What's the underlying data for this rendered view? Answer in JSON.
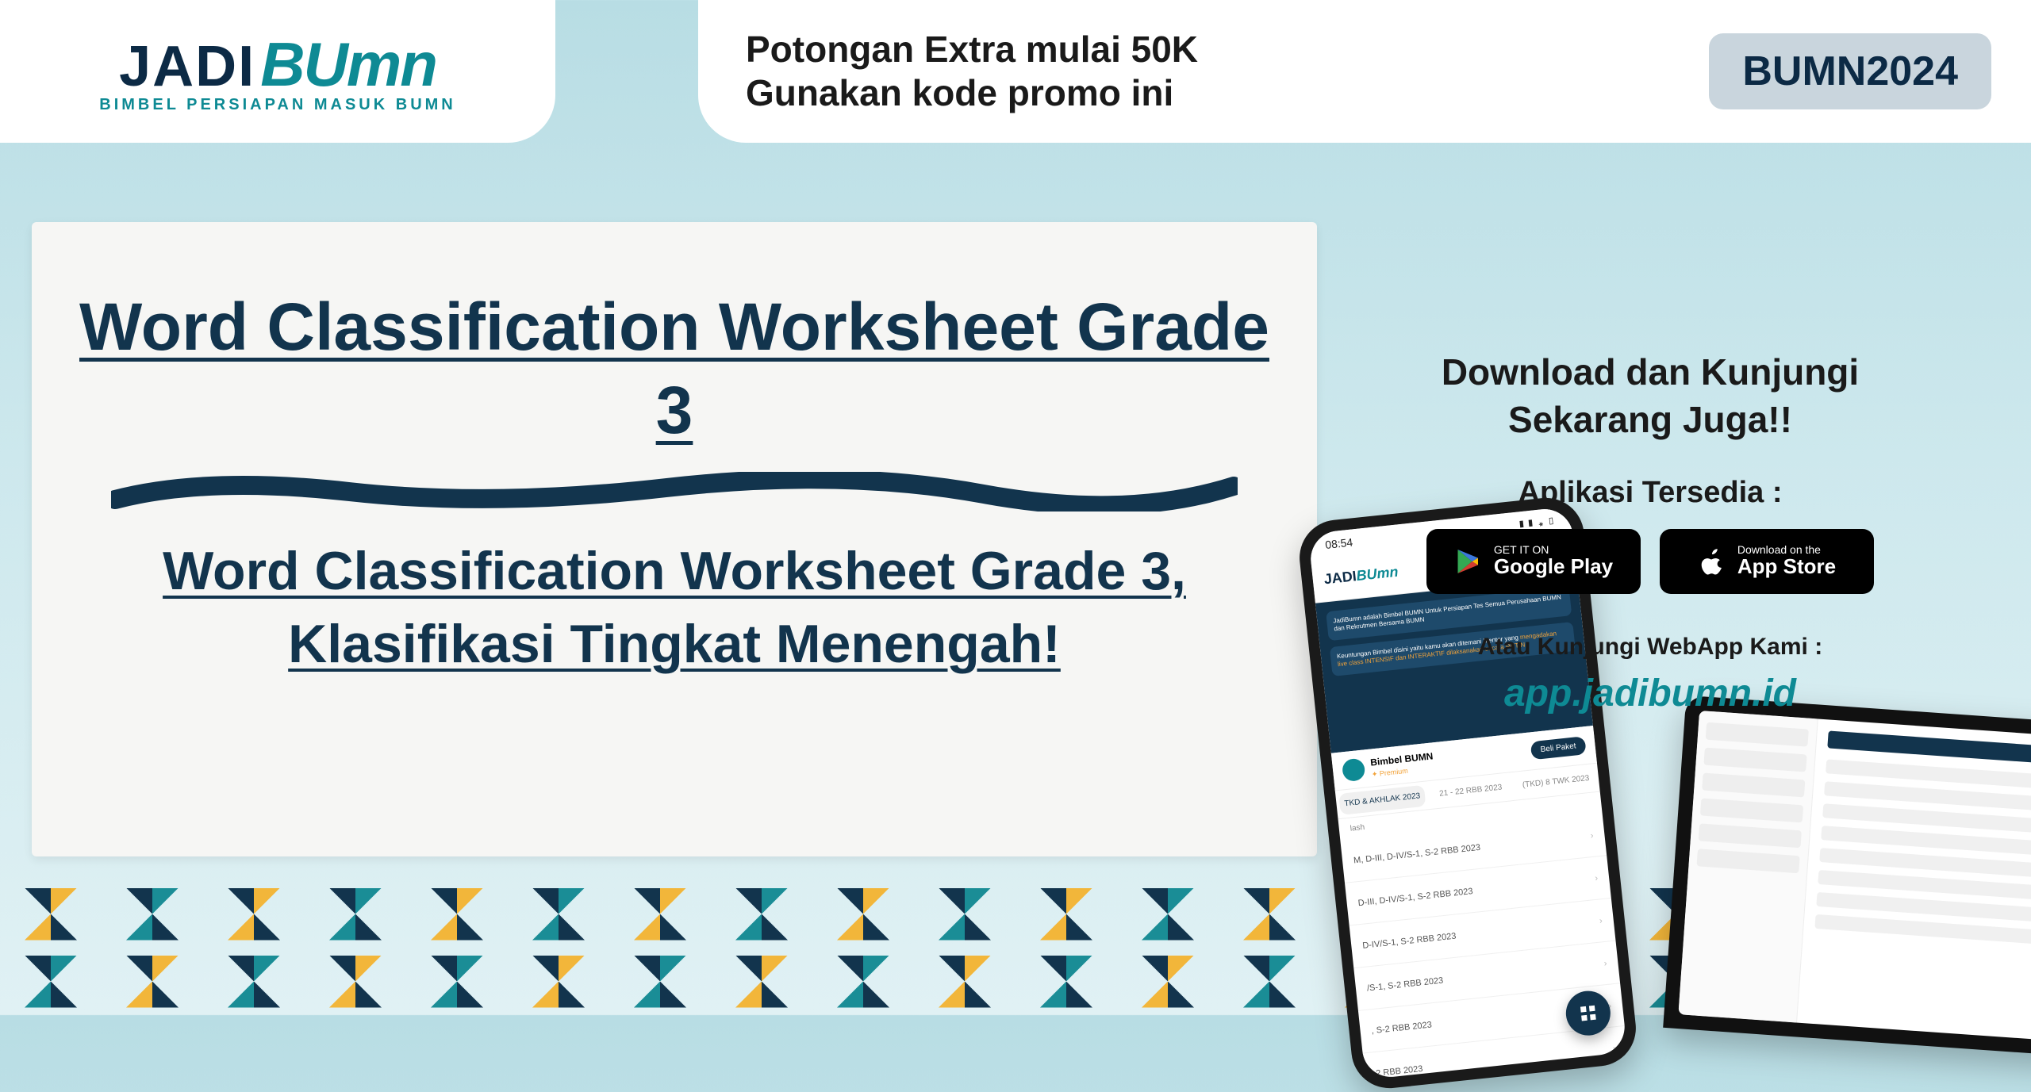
{
  "logo": {
    "word1": "JADI",
    "word2": "BUmn",
    "tagline": "BIMBEL PERSIAPAN MASUK BUMN"
  },
  "promo": {
    "line1": "Potongan Extra mulai 50K",
    "line2": "Gunakan kode promo ini",
    "code": "BUMN2024"
  },
  "main": {
    "title": "Word Classification Worksheet Grade 3",
    "subtitle": "Word Classification Worksheet Grade 3, Klasifikasi Tingkat Menengah!"
  },
  "download": {
    "heading_line1": "Download dan Kunjungi",
    "heading_line2": "Sekarang Juga!!",
    "available": "Aplikasi Tersedia :",
    "google_small": "GET IT ON",
    "google_big": "Google Play",
    "apple_small": "Download on the",
    "apple_big": "App Store",
    "webapp_label": "Atau Kunjungi WebApp Kami :",
    "webapp_url": "app.jadibumn.id"
  },
  "phone": {
    "time": "08:54",
    "hero1": "JadiBumn adalah Bimbel BUMN Untuk Persiapan Tes Semua Perusahaan BUMN dan Rekrutmen Bersama BUMN",
    "hero2_a": "Keuntungan Bimbel disini yaitu kamu akan ditemani Mentor yang ",
    "hero2_b": "mengadakan live class INTENSIF dan INTERAKTIF dilaksanakan secara RUTIN",
    "bimbel_name": "Bimbel BUMN",
    "bimbel_sub": "✦ Premium",
    "bimbel_btn": "Beli Paket",
    "tab1": "TKD & AKHLAK 2023",
    "tab2": "21 - 22 RBB 2023",
    "tab3": "(TKD) 8 TWK 2023",
    "rows": [
      "M, D-III, D-IV/S-1, S-2 RBB 2023",
      "D-III, D-IV/S-1, S-2 RBB 2023",
      "D-IV/S-1, S-2 RBB 2023",
      "/S-1, S-2 RBB 2023",
      ", S-2 RBB 2023",
      "2 RBB 2023"
    ]
  },
  "colors": {
    "navy": "#12344d",
    "teal": "#0e8a94",
    "yellow": "#f2b63a",
    "bg_top": "#b8dde4"
  },
  "pattern": {
    "cols": 20,
    "rows": 2,
    "colors_navy": "#12344d",
    "colors_teal": "#1a8d96",
    "colors_yellow": "#f2b63a"
  }
}
